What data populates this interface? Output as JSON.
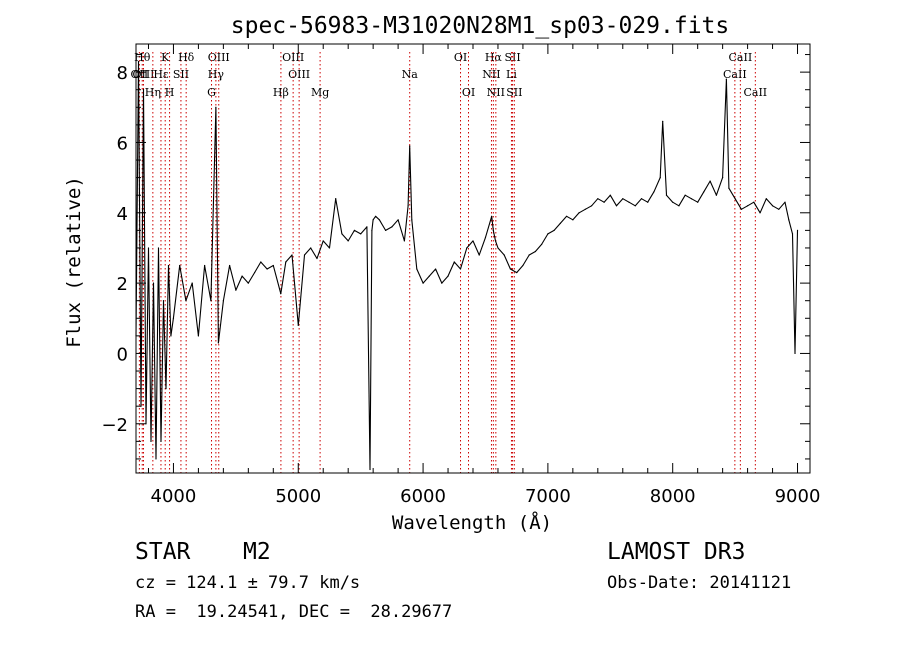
{
  "chart_data": {
    "type": "line",
    "title": "spec-56983-M31020N28M1_sp03-029.fits",
    "xlabel": "Wavelength (Å)",
    "ylabel": "Flux (relative)",
    "xlim": [
      3700,
      9100
    ],
    "ylim": [
      -3.4,
      8.8
    ],
    "x_ticks": [
      4000,
      5000,
      6000,
      7000,
      8000,
      9000
    ],
    "y_ticks": [
      -2,
      0,
      2,
      4,
      6,
      8
    ],
    "grid": false,
    "line_color": "#000000",
    "marker_color": "#cc0000",
    "series": [
      {
        "name": "flux",
        "x": [
          3700,
          3720,
          3740,
          3760,
          3780,
          3800,
          3820,
          3840,
          3860,
          3880,
          3900,
          3920,
          3940,
          3960,
          3980,
          4000,
          4050,
          4100,
          4150,
          4200,
          4250,
          4300,
          4340,
          4360,
          4400,
          4450,
          4500,
          4550,
          4600,
          4650,
          4700,
          4750,
          4800,
          4860,
          4900,
          4950,
          5000,
          5050,
          5100,
          5150,
          5200,
          5250,
          5300,
          5350,
          5400,
          5450,
          5500,
          5550,
          5575,
          5590,
          5600,
          5620,
          5650,
          5700,
          5750,
          5800,
          5850,
          5880,
          5893,
          5910,
          5950,
          6000,
          6050,
          6100,
          6150,
          6200,
          6250,
          6300,
          6350,
          6400,
          6450,
          6500,
          6550,
          6563,
          6580,
          6600,
          6650,
          6700,
          6750,
          6800,
          6850,
          6900,
          6950,
          7000,
          7050,
          7100,
          7150,
          7200,
          7250,
          7300,
          7350,
          7400,
          7450,
          7500,
          7550,
          7600,
          7650,
          7700,
          7750,
          7800,
          7850,
          7900,
          7920,
          7950,
          8000,
          8050,
          8100,
          8150,
          8200,
          8250,
          8300,
          8350,
          8400,
          8430,
          8450,
          8500,
          8550,
          8600,
          8650,
          8700,
          8750,
          8800,
          8850,
          8900,
          8930,
          8960,
          8980,
          9000
        ],
        "y": [
          0.5,
          8.3,
          -1.5,
          7.5,
          -2.0,
          3.0,
          -2.5,
          2.0,
          -3.0,
          3.0,
          -2.5,
          1.5,
          -1.0,
          2.5,
          0.5,
          1.0,
          2.5,
          1.5,
          2.0,
          0.5,
          2.5,
          1.5,
          7.0,
          0.3,
          1.5,
          2.5,
          1.8,
          2.2,
          2.0,
          2.3,
          2.6,
          2.4,
          2.5,
          1.7,
          2.6,
          2.8,
          0.8,
          2.8,
          3.0,
          2.7,
          3.2,
          3.0,
          4.4,
          3.4,
          3.2,
          3.5,
          3.4,
          3.6,
          -3.3,
          3.5,
          3.8,
          3.9,
          3.8,
          3.5,
          3.6,
          3.8,
          3.2,
          4.2,
          5.9,
          3.8,
          2.4,
          2.0,
          2.2,
          2.4,
          2.0,
          2.2,
          2.6,
          2.4,
          3.0,
          3.2,
          2.8,
          3.3,
          3.9,
          3.5,
          3.2,
          3.0,
          2.8,
          2.4,
          2.3,
          2.5,
          2.8,
          2.9,
          3.1,
          3.4,
          3.5,
          3.7,
          3.9,
          3.8,
          4.0,
          4.1,
          4.2,
          4.4,
          4.3,
          4.5,
          4.2,
          4.4,
          4.3,
          4.2,
          4.4,
          4.3,
          4.6,
          5.0,
          6.6,
          4.5,
          4.3,
          4.2,
          4.5,
          4.4,
          4.3,
          4.6,
          4.9,
          4.5,
          5.0,
          7.8,
          4.7,
          4.4,
          4.1,
          4.2,
          4.3,
          4.0,
          4.4,
          4.2,
          4.1,
          4.3,
          3.8,
          3.4,
          0.0,
          3.5
        ]
      }
    ],
    "line_markers": [
      {
        "name": "OII",
        "wl": 3727,
        "row": 2
      },
      {
        "name": "Hθ",
        "wl": 3750,
        "row": 1
      },
      {
        "name": "OIII",
        "wl": 3760,
        "row": 2
      },
      {
        "name": "Hη",
        "wl": 3835,
        "row": 3
      },
      {
        "name": "K",
        "wl": 3934,
        "row": 1
      },
      {
        "name": "Hε",
        "wl": 3900,
        "row": 2
      },
      {
        "name": "SII",
        "wl": 4060,
        "row": 2
      },
      {
        "name": "H",
        "wl": 3969,
        "row": 3
      },
      {
        "name": "Hδ",
        "wl": 4102,
        "row": 1
      },
      {
        "name": "OIII",
        "wl": 4363,
        "row": 1
      },
      {
        "name": "Hγ",
        "wl": 4340,
        "row": 2
      },
      {
        "name": "G",
        "wl": 4305,
        "row": 3
      },
      {
        "name": "OIII",
        "wl": 4959,
        "row": 1
      },
      {
        "name": "OIII",
        "wl": 5007,
        "row": 2
      },
      {
        "name": "Hβ",
        "wl": 4861,
        "row": 3
      },
      {
        "name": "Mg",
        "wl": 5175,
        "row": 3
      },
      {
        "name": "Na",
        "wl": 5893,
        "row": 2
      },
      {
        "name": "OI",
        "wl": 6300,
        "row": 1
      },
      {
        "name": "OI",
        "wl": 6364,
        "row": 3
      },
      {
        "name": "Hα",
        "wl": 6563,
        "row": 1
      },
      {
        "name": "NII",
        "wl": 6548,
        "row": 2
      },
      {
        "name": "NII",
        "wl": 6583,
        "row": 3
      },
      {
        "name": "SII",
        "wl": 6717,
        "row": 1
      },
      {
        "name": "Li",
        "wl": 6708,
        "row": 2
      },
      {
        "name": "SII",
        "wl": 6731,
        "row": 3
      },
      {
        "name": "CaII",
        "wl": 8542,
        "row": 1
      },
      {
        "name": "CaII",
        "wl": 8498,
        "row": 2
      },
      {
        "name": "CaII",
        "wl": 8662,
        "row": 3
      }
    ]
  },
  "info": {
    "object_class": "STAR",
    "subclass": "M2",
    "redshift": "cz = 124.1 ± 79.7 km/s",
    "coords": "RA =  19.24541, DEC =  28.29677",
    "survey": "LAMOST DR3",
    "obs_date": "Obs-Date: 20141121"
  }
}
